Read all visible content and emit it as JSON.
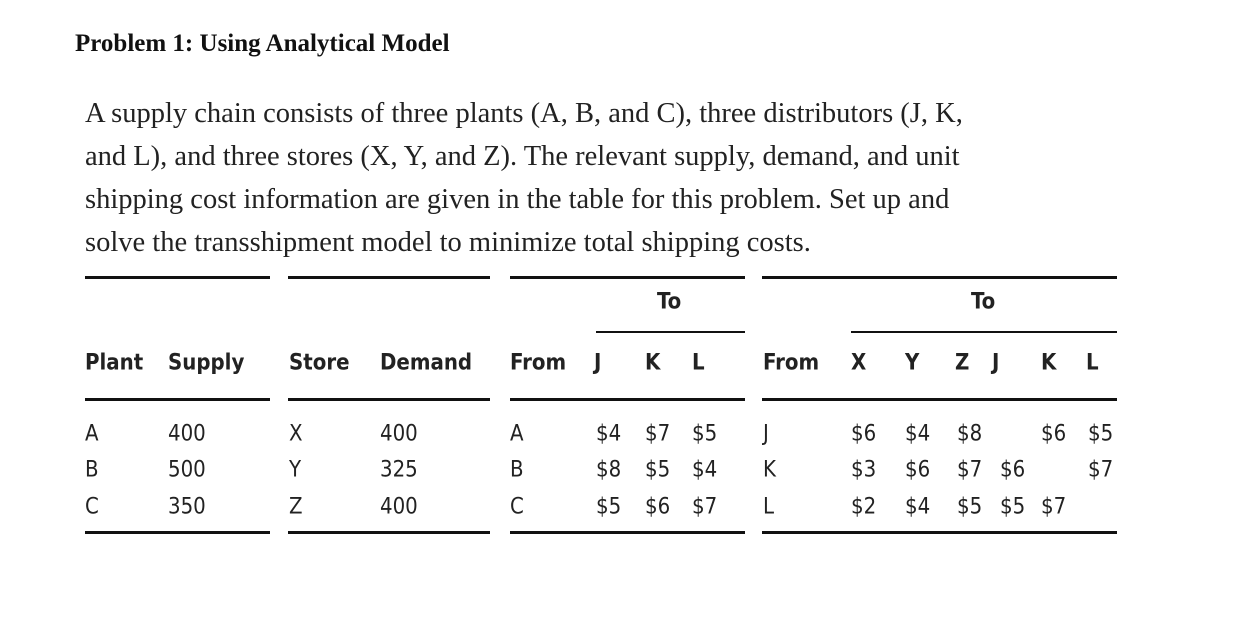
{
  "title": "Problem 1: Using Analytical Model",
  "paragraph_lines": [
    "A supply chain consists of three plants (A, B, and C), three distributors (J, K,",
    "and L), and three stores (X, Y, and Z). The relevant supply, demand, and unit",
    "shipping cost information are given in the table for this problem. Set up and",
    "solve the transshipment model to minimize total shipping costs."
  ],
  "supply_table": {
    "headers": [
      "Plant",
      "Supply"
    ],
    "rows": [
      [
        "A",
        "400"
      ],
      [
        "B",
        "500"
      ],
      [
        "C",
        "350"
      ]
    ]
  },
  "demand_table": {
    "headers": [
      "Store",
      "Demand"
    ],
    "rows": [
      [
        "X",
        "400"
      ],
      [
        "Y",
        "325"
      ],
      [
        "Z",
        "400"
      ]
    ]
  },
  "plant_cost_table": {
    "group_label": "To",
    "headers": [
      "From",
      "J",
      "K",
      "L"
    ],
    "rows": [
      [
        "A",
        "$4",
        "$7",
        "$5"
      ],
      [
        "B",
        "$8",
        "$5",
        "$4"
      ],
      [
        "C",
        "$5",
        "$6",
        "$7"
      ]
    ]
  },
  "distributor_cost_table": {
    "group_label": "To",
    "headers": [
      "From",
      "X",
      "Y",
      "Z",
      "J",
      "K",
      "L"
    ],
    "rows": [
      [
        "J",
        "$6",
        "$4",
        "$8",
        "",
        "$6",
        "$5"
      ],
      [
        "K",
        "$3",
        "$6",
        "$7",
        "$6",
        "",
        "$7"
      ],
      [
        "L",
        "$2",
        "$4",
        "$5",
        "$5",
        "$7",
        ""
      ]
    ]
  }
}
